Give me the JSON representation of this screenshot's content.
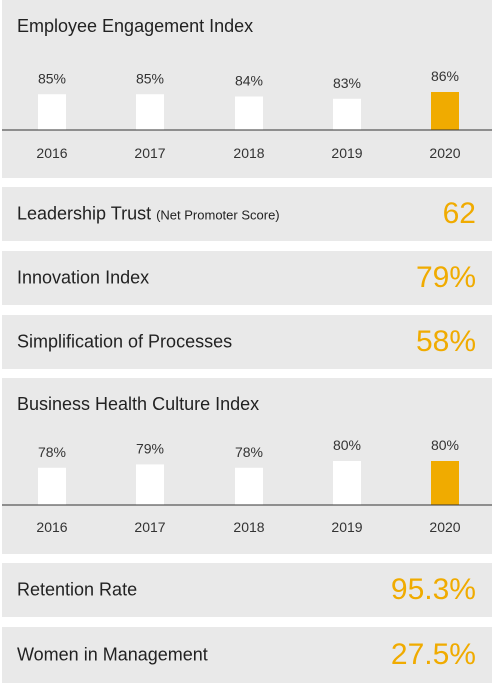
{
  "colors": {
    "accent": "#f0ab00",
    "panel_bg": "#e9e9e9",
    "bar_default": "#ffffff",
    "bar_highlight": "#f0ab00",
    "baseline": "#333333"
  },
  "chart_data": [
    {
      "type": "bar",
      "title": "Employee Engagement Index",
      "categories": [
        "2016",
        "2017",
        "2018",
        "2019",
        "2020"
      ],
      "values": [
        85,
        85,
        84,
        83,
        86
      ],
      "labels": [
        "85%",
        "85%",
        "84%",
        "83%",
        "86%"
      ],
      "highlight_index": 4,
      "ylim": [
        78,
        86
      ]
    },
    {
      "type": "bar",
      "title": "Business Health Culture Index",
      "categories": [
        "2016",
        "2017",
        "2018",
        "2019",
        "2020"
      ],
      "values": [
        78,
        79,
        78,
        80,
        80
      ],
      "labels": [
        "78%",
        "79%",
        "78%",
        "80%",
        "80%"
      ],
      "highlight_index": 4,
      "ylim": [
        75,
        80
      ]
    }
  ],
  "kpis": {
    "leadership_trust": {
      "label": "Leadership Trust",
      "sublabel": "(Net Promoter Score)",
      "value": "62"
    },
    "innovation_index": {
      "label": "Innovation Index",
      "value": "79%"
    },
    "simplification": {
      "label": "Simplification of Processes",
      "value": "58%"
    },
    "retention_rate": {
      "label": "Retention Rate",
      "value": "95.3%"
    },
    "women_in_management": {
      "label": "Women in Management",
      "value": "27.5%"
    }
  }
}
